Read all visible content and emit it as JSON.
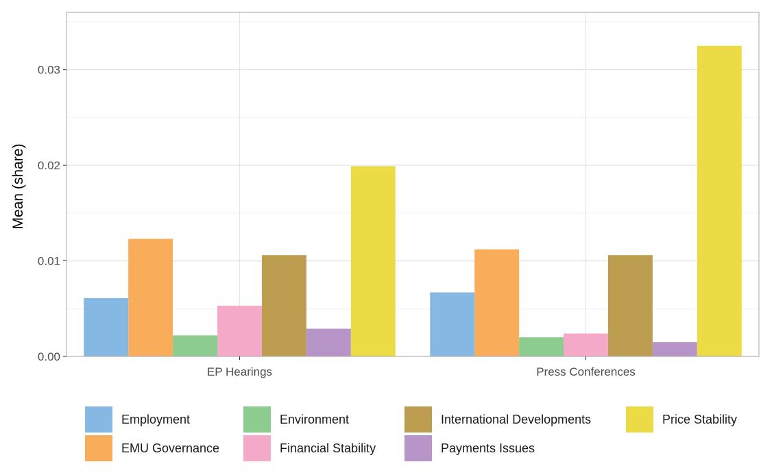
{
  "chart_data": {
    "type": "bar",
    "title": "",
    "xlabel": "",
    "ylabel": "Mean (share)",
    "categories": [
      "EP Hearings",
      "Press Conferences"
    ],
    "ylim": [
      0,
      0.036
    ],
    "yticks": [
      0.0,
      0.01,
      0.02,
      0.03
    ],
    "ytick_labels": [
      "0.00",
      "0.01",
      "0.02",
      "0.03"
    ],
    "grid": true,
    "legend_position": "bottom",
    "series": [
      {
        "name": "Employment",
        "color": "#85B8E3",
        "values": [
          0.0061,
          0.0067
        ]
      },
      {
        "name": "EMU Governance",
        "color": "#F9AC59",
        "values": [
          0.0123,
          0.0112
        ]
      },
      {
        "name": "Environment",
        "color": "#8CCC8E",
        "values": [
          0.0022,
          0.002
        ]
      },
      {
        "name": "Financial Stability",
        "color": "#F5A9C9",
        "values": [
          0.0053,
          0.0024
        ]
      },
      {
        "name": "International Developments",
        "color": "#BD9E50",
        "values": [
          0.0106,
          0.0106
        ]
      },
      {
        "name": "Payments Issues",
        "color": "#B795C8",
        "values": [
          0.0029,
          0.0015
        ]
      },
      {
        "name": "Price Stability",
        "color": "#EBDB45",
        "values": [
          0.0199,
          0.0325
        ]
      }
    ],
    "legend_order": [
      [
        "Employment",
        "Environment",
        "International Developments",
        "Price Stability"
      ],
      [
        "EMU Governance",
        "Financial Stability",
        "Payments Issues"
      ]
    ]
  }
}
